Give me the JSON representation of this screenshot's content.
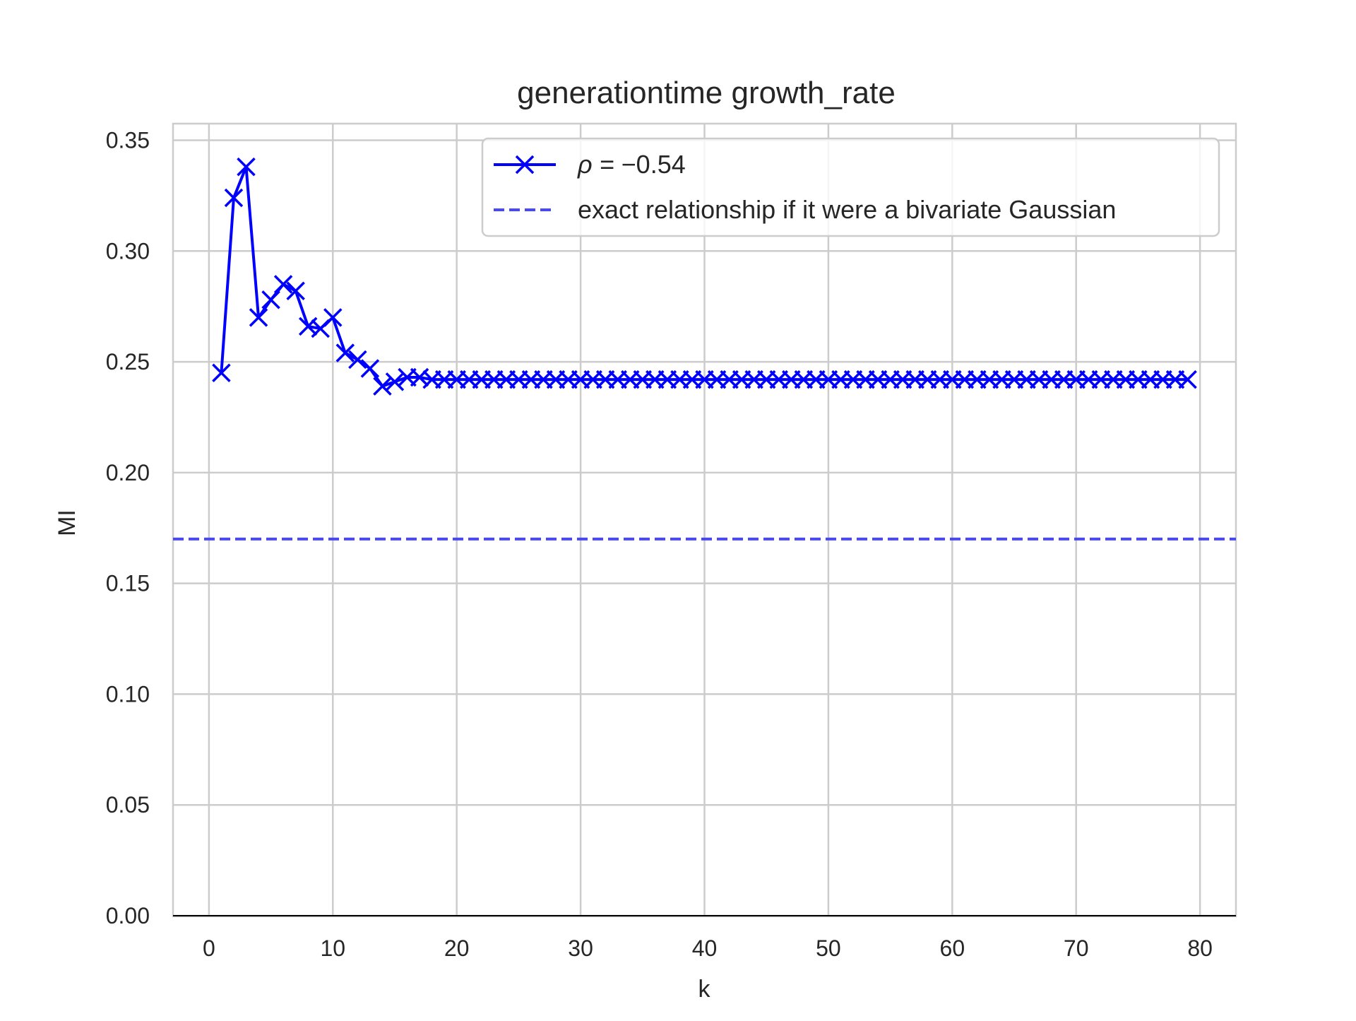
{
  "chart_data": {
    "type": "line",
    "title": "generationtime growth_rate",
    "xlabel": "k",
    "ylabel": "MI",
    "xlim": [
      -2.9,
      82.9
    ],
    "ylim": [
      0,
      0.3575
    ],
    "grid": true,
    "xticks": [
      0,
      10,
      20,
      30,
      40,
      50,
      60,
      70,
      80
    ],
    "xtick_labels": [
      "0",
      "10",
      "20",
      "30",
      "40",
      "50",
      "60",
      "70",
      "80"
    ],
    "yticks": [
      0,
      0.05,
      0.1,
      0.15,
      0.2,
      0.25,
      0.3,
      0.35
    ],
    "ytick_labels": [
      "0.00",
      "0.05",
      "0.10",
      "0.15",
      "0.20",
      "0.25",
      "0.30",
      "0.35"
    ],
    "legend_position": "top-right",
    "series": [
      {
        "name_prefix": "ρ = ",
        "name_value": "−0.54",
        "style": "solid",
        "marker": "x",
        "color": "#0000ff",
        "x": [
          1,
          2,
          3,
          4,
          5,
          6,
          7,
          8,
          9,
          10,
          11,
          12,
          13,
          14,
          15,
          16,
          17,
          18,
          19,
          20,
          21,
          22,
          23,
          24,
          25,
          26,
          27,
          28,
          29,
          30,
          31,
          32,
          33,
          34,
          35,
          36,
          37,
          38,
          39,
          40,
          41,
          42,
          43,
          44,
          45,
          46,
          47,
          48,
          49,
          50,
          51,
          52,
          53,
          54,
          55,
          56,
          57,
          58,
          59,
          60,
          61,
          62,
          63,
          64,
          65,
          66,
          67,
          68,
          69,
          70,
          71,
          72,
          73,
          74,
          75,
          76,
          77,
          78,
          79
        ],
        "y": [
          0.245,
          0.324,
          0.338,
          0.27,
          0.278,
          0.285,
          0.282,
          0.266,
          0.265,
          0.27,
          0.254,
          0.251,
          0.247,
          0.239,
          0.241,
          0.243,
          0.243,
          0.242,
          0.242,
          0.242,
          0.242,
          0.242,
          0.242,
          0.242,
          0.242,
          0.242,
          0.242,
          0.242,
          0.242,
          0.242,
          0.242,
          0.242,
          0.242,
          0.242,
          0.242,
          0.242,
          0.242,
          0.242,
          0.242,
          0.242,
          0.242,
          0.242,
          0.242,
          0.242,
          0.242,
          0.242,
          0.242,
          0.242,
          0.242,
          0.242,
          0.242,
          0.242,
          0.242,
          0.242,
          0.242,
          0.242,
          0.242,
          0.242,
          0.242,
          0.242,
          0.242,
          0.242,
          0.242,
          0.242,
          0.242,
          0.242,
          0.242,
          0.242,
          0.242,
          0.242,
          0.242,
          0.242,
          0.242,
          0.242,
          0.242,
          0.242,
          0.242,
          0.242,
          0.242
        ]
      },
      {
        "name": "exact relationship if it were a bivariate Gaussian",
        "style": "dashed",
        "color": "#4747ff",
        "y_constant": 0.17
      }
    ]
  }
}
